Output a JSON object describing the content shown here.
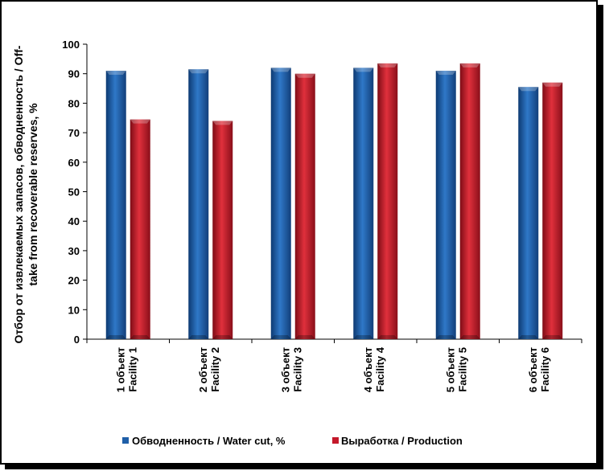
{
  "chart_data": {
    "type": "bar",
    "title": "",
    "ylabel_line1": "Отбор от извлекаемых запасов, обводненность / Off-",
    "ylabel_line2": "take from recoverable reserves, %",
    "xlabel": "",
    "ylim": [
      0,
      100
    ],
    "ytick_step": 10,
    "grid": false,
    "legend_position": "bottom",
    "categories": [
      {
        "line1": "1 объект",
        "line2": "Facility 1"
      },
      {
        "line1": "2 объект",
        "line2": "Facility 2"
      },
      {
        "line1": "3 объект",
        "line2": "Facility 3"
      },
      {
        "line1": "4 объект",
        "line2": "Facility 4"
      },
      {
        "line1": "5 объект",
        "line2": "Facility 5"
      },
      {
        "line1": "6 объект",
        "line2": "Facility 6"
      }
    ],
    "series": [
      {
        "name": "Обводненность / Water cut, %",
        "color": "#1f5fa8",
        "values": [
          91,
          91.5,
          92,
          92,
          91,
          85.5
        ]
      },
      {
        "name": "Выработка / Production",
        "color": "#c4182a",
        "values": [
          74.5,
          74,
          90,
          93.5,
          93.5,
          87
        ]
      }
    ]
  }
}
